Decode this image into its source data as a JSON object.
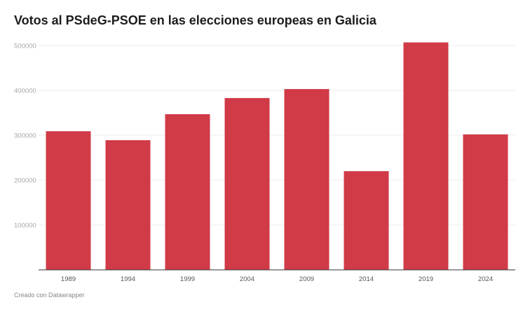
{
  "chart_data": {
    "type": "bar",
    "title": "Votos al PSdeG-PSOE en las elecciones europeas en Galicia",
    "categories": [
      "1989",
      "1994",
      "1999",
      "2004",
      "2009",
      "2014",
      "2019",
      "2024"
    ],
    "values": [
      309000,
      289000,
      347000,
      383000,
      403000,
      220000,
      507000,
      302000
    ],
    "xlabel": "",
    "ylabel": "",
    "ylim": [
      0,
      500000
    ],
    "yticks": [
      "100000",
      "200000",
      "300000",
      "400000",
      "500000"
    ],
    "grid": true,
    "bar_color": "#d13a47"
  },
  "footer": "Creado con Datawrapper"
}
